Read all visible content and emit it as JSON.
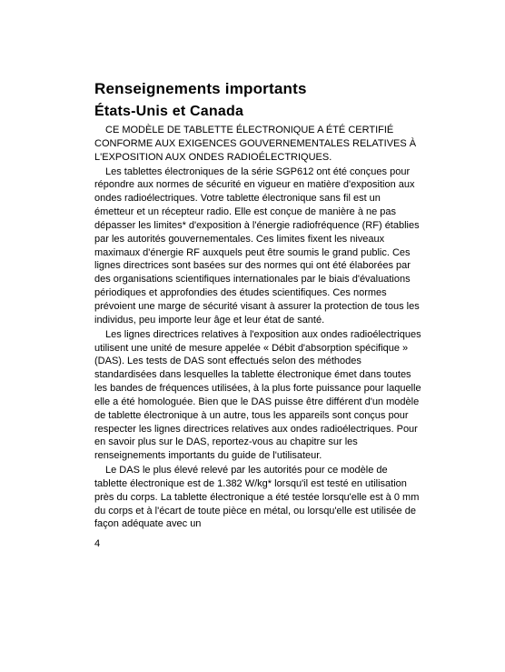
{
  "page": {
    "heading_main": "Renseignements importants",
    "heading_sub": "États-Unis et Canada",
    "p1": "CE MODÈLE DE TABLETTE ÉLECTRONIQUE A ÉTÉ CERTIFIÉ CONFORME AUX EXIGENCES GOUVERNEMENTALES RELATIVES À L'EXPOSITION AUX ONDES RADIOÉLECTRIQUES.",
    "p2": "Les tablettes électroniques de la série SGP612 ont été conçues pour répondre aux normes de sécurité en vigueur en matière d'exposition aux ondes radioélectriques. Votre tablette électronique sans fil est un émetteur et un récepteur radio. Elle est conçue de manière à ne pas dépasser les limites* d'exposition à l'énergie radiofréquence (RF) établies par les autorités gouvernementales. Ces limites fixent les niveaux maximaux d'énergie RF auxquels peut être soumis le grand public. Ces lignes directrices sont basées sur des normes qui ont été élaborées par des organisations scientifiques internationales par le biais d'évaluations périodiques et approfondies des études scientifiques. Ces normes prévoient une marge de sécurité visant à assurer la protection de tous les individus, peu importe leur âge et leur état de santé.",
    "p3": "Les lignes directrices relatives à l'exposition aux ondes radioélectriques utilisent une unité de mesure appelée « Débit d'absorption spécifique » (DAS). Les tests de DAS sont effectués selon des méthodes standardisées dans lesquelles la tablette électronique émet dans toutes les bandes de fréquences utilisées, à la plus forte puissance pour laquelle elle a été homologuée. Bien que le DAS puisse être différent d'un modèle de tablette électronique à un autre, tous les appareils sont conçus pour respecter les lignes directrices relatives aux ondes radioélectriques. Pour en savoir plus sur le DAS, reportez-vous au chapitre sur les renseignements importants du guide de l'utilisateur.",
    "p4": "Le DAS le plus élevé relevé par les autorités pour ce modèle de tablette électronique est de 1.382 W/kg* lorsqu'il est testé en utilisation près du corps. La tablette électronique a été testée lorsqu'elle est à 0 mm du corps et à l'écart de toute pièce en métal, ou lorsqu'elle est utilisée de façon adéquate avec un",
    "page_number": "4"
  }
}
